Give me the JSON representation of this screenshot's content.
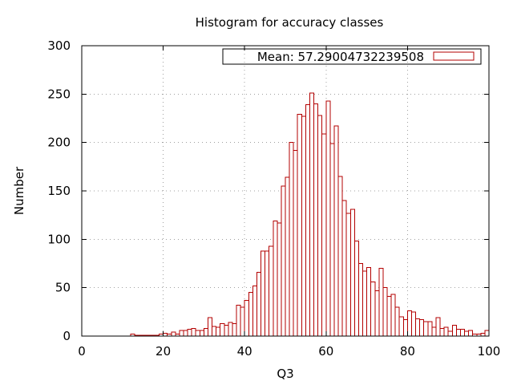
{
  "chart_data": {
    "type": "bar",
    "title": "Histogram for accuracy classes",
    "xlabel": "Q3",
    "ylabel": "Number",
    "xlim": [
      0,
      100
    ],
    "ylim": [
      0,
      300
    ],
    "x_ticks": [
      "0",
      "20",
      "40",
      "60",
      "80",
      "100"
    ],
    "y_ticks": [
      "0",
      "50",
      "100",
      "150",
      "200",
      "250",
      "300"
    ],
    "grid": true,
    "bar_color": "#b30000",
    "legend": {
      "position": "top-right",
      "label": "Mean: 57.29004732239508"
    },
    "bin_width": 1,
    "bins": [
      {
        "x": 12.5,
        "y": 2
      },
      {
        "x": 13.5,
        "y": 1
      },
      {
        "x": 14.5,
        "y": 1
      },
      {
        "x": 15.5,
        "y": 1
      },
      {
        "x": 16.5,
        "y": 1
      },
      {
        "x": 17.5,
        "y": 1
      },
      {
        "x": 18.5,
        "y": 1
      },
      {
        "x": 19.5,
        "y": 2
      },
      {
        "x": 20.5,
        "y": 3
      },
      {
        "x": 21.5,
        "y": 2
      },
      {
        "x": 22.5,
        "y": 4
      },
      {
        "x": 23.5,
        "y": 2
      },
      {
        "x": 24.5,
        "y": 6
      },
      {
        "x": 25.5,
        "y": 6
      },
      {
        "x": 26.5,
        "y": 7
      },
      {
        "x": 27.5,
        "y": 8
      },
      {
        "x": 28.5,
        "y": 6
      },
      {
        "x": 29.5,
        "y": 6
      },
      {
        "x": 30.5,
        "y": 8
      },
      {
        "x": 31.5,
        "y": 19
      },
      {
        "x": 32.5,
        "y": 10
      },
      {
        "x": 33.5,
        "y": 9
      },
      {
        "x": 34.5,
        "y": 13
      },
      {
        "x": 35.5,
        "y": 11
      },
      {
        "x": 36.5,
        "y": 14
      },
      {
        "x": 37.5,
        "y": 13
      },
      {
        "x": 38.5,
        "y": 32
      },
      {
        "x": 39.5,
        "y": 30
      },
      {
        "x": 40.5,
        "y": 37
      },
      {
        "x": 41.5,
        "y": 45
      },
      {
        "x": 42.5,
        "y": 52
      },
      {
        "x": 43.5,
        "y": 66
      },
      {
        "x": 44.5,
        "y": 88
      },
      {
        "x": 45.5,
        "y": 88
      },
      {
        "x": 46.5,
        "y": 93
      },
      {
        "x": 47.5,
        "y": 119
      },
      {
        "x": 48.5,
        "y": 117
      },
      {
        "x": 49.5,
        "y": 155
      },
      {
        "x": 50.5,
        "y": 164
      },
      {
        "x": 51.5,
        "y": 200
      },
      {
        "x": 52.5,
        "y": 192
      },
      {
        "x": 53.5,
        "y": 229
      },
      {
        "x": 54.5,
        "y": 227
      },
      {
        "x": 55.5,
        "y": 239
      },
      {
        "x": 56.5,
        "y": 251
      },
      {
        "x": 57.5,
        "y": 240
      },
      {
        "x": 58.5,
        "y": 228
      },
      {
        "x": 59.5,
        "y": 209
      },
      {
        "x": 60.5,
        "y": 243
      },
      {
        "x": 61.5,
        "y": 199
      },
      {
        "x": 62.5,
        "y": 217
      },
      {
        "x": 63.5,
        "y": 165
      },
      {
        "x": 64.5,
        "y": 140
      },
      {
        "x": 65.5,
        "y": 127
      },
      {
        "x": 66.5,
        "y": 131
      },
      {
        "x": 67.5,
        "y": 98
      },
      {
        "x": 68.5,
        "y": 75
      },
      {
        "x": 69.5,
        "y": 67
      },
      {
        "x": 70.5,
        "y": 71
      },
      {
        "x": 71.5,
        "y": 56
      },
      {
        "x": 72.5,
        "y": 47
      },
      {
        "x": 73.5,
        "y": 70
      },
      {
        "x": 74.5,
        "y": 50
      },
      {
        "x": 75.5,
        "y": 41
      },
      {
        "x": 76.5,
        "y": 43
      },
      {
        "x": 77.5,
        "y": 30
      },
      {
        "x": 78.5,
        "y": 20
      },
      {
        "x": 79.5,
        "y": 17
      },
      {
        "x": 80.5,
        "y": 26
      },
      {
        "x": 81.5,
        "y": 25
      },
      {
        "x": 82.5,
        "y": 18
      },
      {
        "x": 83.5,
        "y": 17
      },
      {
        "x": 84.5,
        "y": 15
      },
      {
        "x": 85.5,
        "y": 15
      },
      {
        "x": 86.5,
        "y": 9
      },
      {
        "x": 87.5,
        "y": 19
      },
      {
        "x": 88.5,
        "y": 8
      },
      {
        "x": 89.5,
        "y": 9
      },
      {
        "x": 90.5,
        "y": 5
      },
      {
        "x": 91.5,
        "y": 11
      },
      {
        "x": 92.5,
        "y": 7
      },
      {
        "x": 93.5,
        "y": 7
      },
      {
        "x": 94.5,
        "y": 5
      },
      {
        "x": 95.5,
        "y": 6
      },
      {
        "x": 96.5,
        "y": 2
      },
      {
        "x": 97.5,
        "y": 2
      },
      {
        "x": 98.5,
        "y": 3
      },
      {
        "x": 99.5,
        "y": 6
      }
    ]
  }
}
